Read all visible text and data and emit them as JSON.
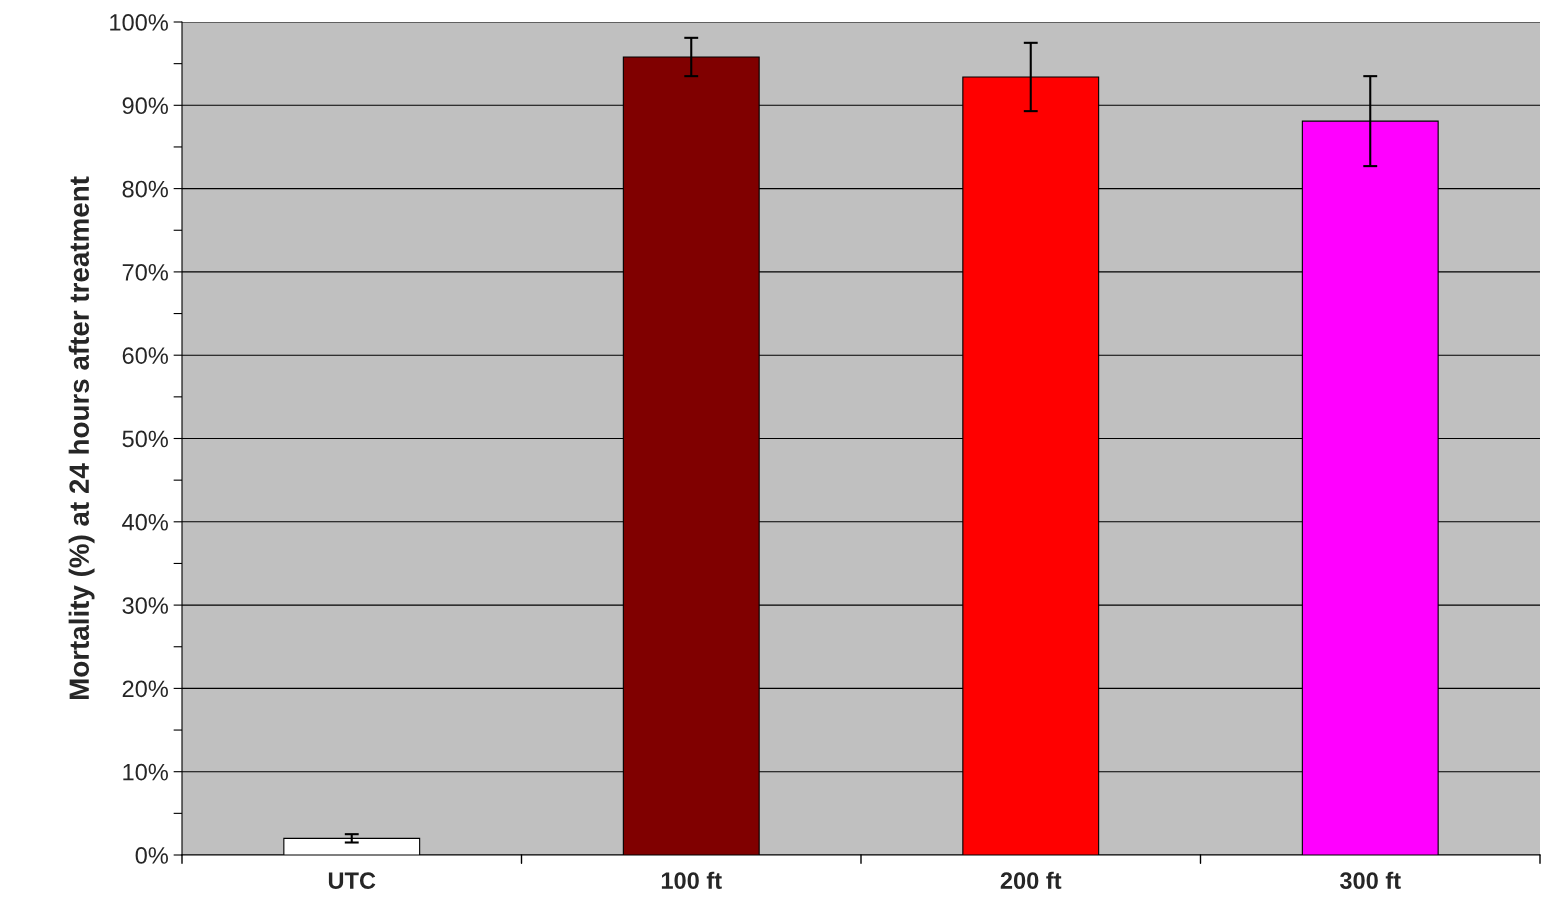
{
  "chart_data": {
    "type": "bar",
    "ylabel": "Mortality (%) at 24 hours after treatment",
    "categories": [
      "UTC",
      "100 ft",
      "200 ft",
      "300 ft"
    ],
    "values": [
      2.0,
      95.8,
      93.4,
      88.1
    ],
    "errors": [
      0.5,
      2.3,
      4.1,
      5.4
    ],
    "colors": [
      "#ffffff",
      "#800000",
      "#ff0000",
      "#ff00ff"
    ],
    "ylim": [
      0,
      100
    ],
    "yticks": [
      {
        "value": 0,
        "label": "0%"
      },
      {
        "value": 5,
        "label": null
      },
      {
        "value": 10,
        "label": "10%"
      },
      {
        "value": 15,
        "label": null
      },
      {
        "value": 20,
        "label": "20%"
      },
      {
        "value": 25,
        "label": null
      },
      {
        "value": 30,
        "label": "30%"
      },
      {
        "value": 35,
        "label": null
      },
      {
        "value": 40,
        "label": "40%"
      },
      {
        "value": 45,
        "label": null
      },
      {
        "value": 50,
        "label": "50%"
      },
      {
        "value": 55,
        "label": null
      },
      {
        "value": 60,
        "label": "60%"
      },
      {
        "value": 65,
        "label": null
      },
      {
        "value": 70,
        "label": "70%"
      },
      {
        "value": 75,
        "label": null
      },
      {
        "value": 80,
        "label": "80%"
      },
      {
        "value": 85,
        "label": null
      },
      {
        "value": 90,
        "label": "90%"
      },
      {
        "value": 95,
        "label": null
      },
      {
        "value": 100,
        "label": "100%"
      }
    ],
    "grid": "y",
    "legend": false
  }
}
